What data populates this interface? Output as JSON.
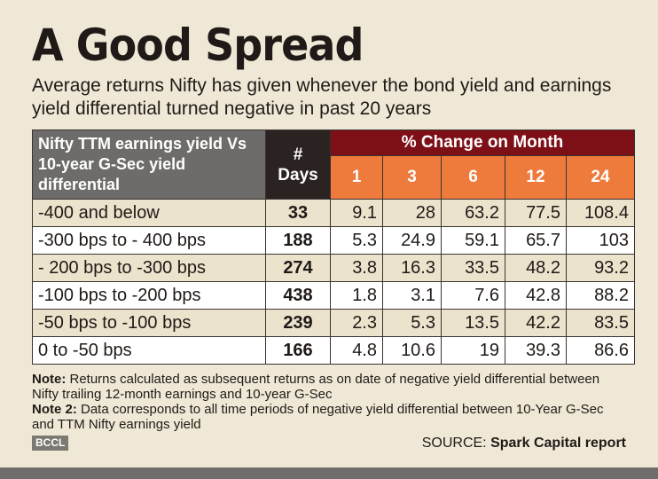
{
  "title": "A Good Spread",
  "subtitle": "Average returns Nifty has given whenever the bond yield and earnings yield differential turned negative in past 20 years",
  "colors": {
    "background": "#efe8d6",
    "label_header": "#6e6c6a",
    "days_header": "#2a2321",
    "group_header": "#7d0f17",
    "month_header": "#ee7a3c"
  },
  "chart_data": {
    "type": "table",
    "header": {
      "label": "Nifty TTM earnings yield Vs 10-year G-Sec yield differential",
      "days_line1": "#",
      "days_line2": "Days",
      "group": "% Change on Month"
    },
    "months": [
      "1",
      "3",
      "6",
      "12",
      "24"
    ],
    "rows": [
      {
        "label": "-400 and below",
        "days": "33",
        "values": [
          "9.1",
          "28",
          "63.2",
          "77.5",
          "108.4"
        ]
      },
      {
        "label": "-300 bps to - 400 bps",
        "days": "188",
        "values": [
          "5.3",
          "24.9",
          "59.1",
          "65.7",
          "103"
        ]
      },
      {
        "label": "- 200 bps to -300 bps",
        "days": "274",
        "values": [
          "3.8",
          "16.3",
          "33.5",
          "48.2",
          "93.2"
        ]
      },
      {
        "label": "-100 bps to -200 bps",
        "days": "438",
        "values": [
          "1.8",
          "3.1",
          "7.6",
          "42.8",
          "88.2"
        ]
      },
      {
        "label": "-50 bps to -100 bps",
        "days": "239",
        "values": [
          "2.3",
          "5.3",
          "13.5",
          "42.2",
          "83.5"
        ]
      },
      {
        "label": "0 to -50 bps",
        "days": "166",
        "values": [
          "4.8",
          "10.6",
          "19",
          "39.3",
          "86.6"
        ]
      }
    ]
  },
  "notes": {
    "note1_label": "Note:",
    "note1_text": " Returns calculated as subsequent returns as on date of negative yield differential between Nifty trailing 12-month earnings and 10-year G-Sec",
    "note2_label": "Note 2:",
    "note2_text": " Data corresponds to all time periods of negative yield differential between 10-Year G-Sec and TTM Nifty earnings yield"
  },
  "source": {
    "label": "SOURCE: ",
    "value": "Spark Capital report"
  },
  "watermark": "BCCL"
}
